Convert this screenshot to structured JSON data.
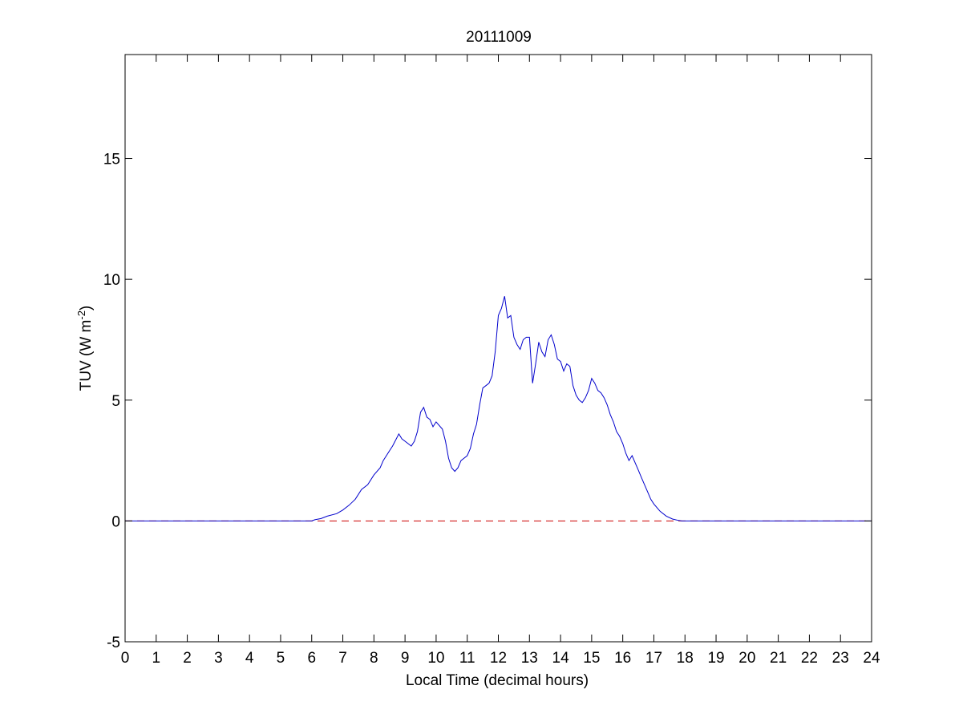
{
  "chart_data": {
    "type": "line",
    "title": "20111009",
    "xlabel": "Local Time (decimal hours)",
    "ylabel": {
      "base": "TUV (W m",
      "superscript": "-2",
      "suffix": ")"
    },
    "xlim": [
      0,
      24
    ],
    "ylim": [
      -5,
      19.3
    ],
    "xticks": [
      0,
      1,
      2,
      3,
      4,
      5,
      6,
      7,
      8,
      9,
      10,
      11,
      12,
      13,
      14,
      15,
      16,
      17,
      18,
      19,
      20,
      21,
      22,
      23,
      24
    ],
    "yticks": [
      -5,
      0,
      5,
      10,
      15
    ],
    "grid": false,
    "colors": {
      "series": "#0000cc",
      "zero_line": "#cc0000",
      "axes": "#000000"
    },
    "series": [
      {
        "style": "solid",
        "x": [
          0,
          6.0,
          6.1,
          6.3,
          6.5,
          6.8,
          7.0,
          7.2,
          7.4,
          7.6,
          7.8,
          8.0,
          8.2,
          8.3,
          8.5,
          8.6,
          8.8,
          8.9,
          9.0,
          9.1,
          9.2,
          9.3,
          9.4,
          9.5,
          9.6,
          9.7,
          9.8,
          9.9,
          10.0,
          10.2,
          10.3,
          10.4,
          10.5,
          10.6,
          10.7,
          10.8,
          10.9,
          11.0,
          11.1,
          11.2,
          11.3,
          11.4,
          11.5,
          11.6,
          11.7,
          11.8,
          11.9,
          12.0,
          12.1,
          12.2,
          12.3,
          12.4,
          12.5,
          12.6,
          12.7,
          12.8,
          12.9,
          13.0,
          13.1,
          13.2,
          13.3,
          13.4,
          13.5,
          13.6,
          13.7,
          13.8,
          13.9,
          14.0,
          14.1,
          14.2,
          14.3,
          14.4,
          14.5,
          14.6,
          14.7,
          14.8,
          14.9,
          15.0,
          15.1,
          15.2,
          15.3,
          15.4,
          15.5,
          15.6,
          15.7,
          15.8,
          15.9,
          16.0,
          16.1,
          16.2,
          16.3,
          16.4,
          16.5,
          16.6,
          16.7,
          16.8,
          16.9,
          17.0,
          17.2,
          17.4,
          17.6,
          17.8,
          17.9,
          18.0,
          24
        ],
        "values": [
          0,
          0,
          0.05,
          0.1,
          0.2,
          0.3,
          0.45,
          0.65,
          0.9,
          1.3,
          1.5,
          1.9,
          2.2,
          2.5,
          2.9,
          3.1,
          3.6,
          3.4,
          3.3,
          3.2,
          3.1,
          3.3,
          3.7,
          4.5,
          4.7,
          4.3,
          4.2,
          3.9,
          4.1,
          3.8,
          3.3,
          2.6,
          2.2,
          2.05,
          2.2,
          2.5,
          2.6,
          2.7,
          3.0,
          3.6,
          4.0,
          4.8,
          5.5,
          5.6,
          5.7,
          6.0,
          7.0,
          8.5,
          8.8,
          9.3,
          8.4,
          8.5,
          7.6,
          7.3,
          7.1,
          7.5,
          7.6,
          7.6,
          5.7,
          6.5,
          7.4,
          7.0,
          6.8,
          7.5,
          7.7,
          7.3,
          6.7,
          6.6,
          6.2,
          6.5,
          6.4,
          5.6,
          5.2,
          5.0,
          4.9,
          5.1,
          5.4,
          5.9,
          5.7,
          5.4,
          5.3,
          5.1,
          4.8,
          4.4,
          4.1,
          3.7,
          3.5,
          3.2,
          2.8,
          2.5,
          2.7,
          2.4,
          2.1,
          1.8,
          1.5,
          1.2,
          0.9,
          0.7,
          0.4,
          0.2,
          0.08,
          0.02,
          0,
          0,
          0
        ]
      },
      {
        "style": "dashed",
        "x": [
          0,
          24
        ],
        "values": [
          0,
          0
        ]
      }
    ]
  }
}
